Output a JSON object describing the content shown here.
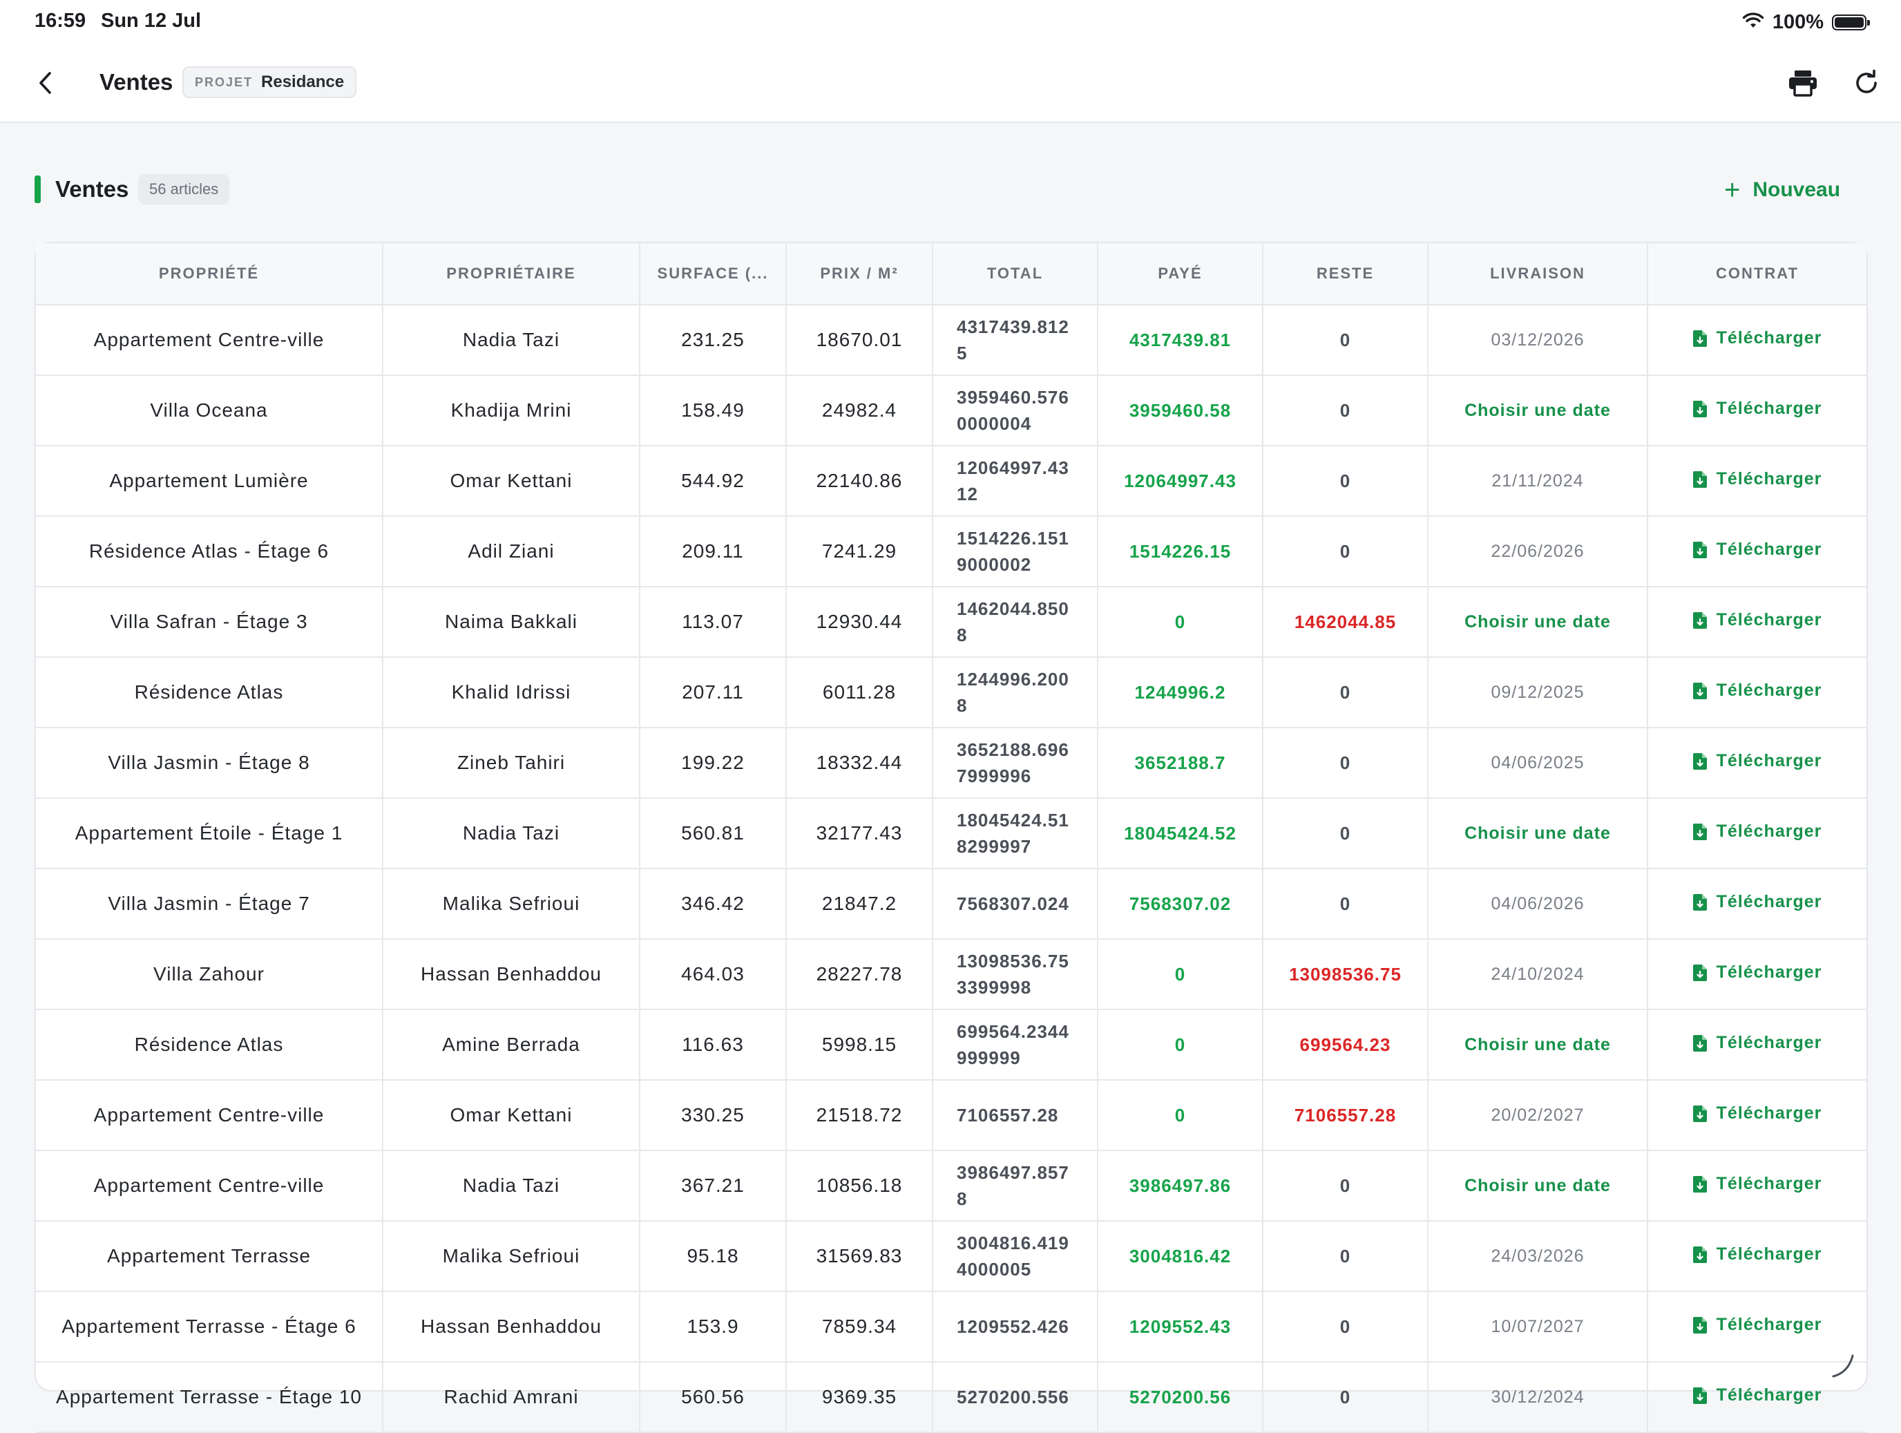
{
  "status_bar": {
    "time": "16:59",
    "date": "Sun 12 Jul",
    "battery": "100%"
  },
  "nav": {
    "title": "Ventes",
    "project_label": "PROJET",
    "project_name": "Residance"
  },
  "section": {
    "title": "Ventes",
    "count": "56 articles",
    "new_button": "Nouveau"
  },
  "table": {
    "columns": [
      "PROPRIÉTÉ",
      "PROPRIÉTAIRE",
      "SURFACE (...",
      "PRIX / M²",
      "TOTAL",
      "PAYÉ",
      "RESTE",
      "LIVRAISON",
      "CONTRAT"
    ],
    "rows": [
      {
        "propriete": "Appartement Centre-ville",
        "proprietaire": "Nadia Tazi",
        "surface": "231.25",
        "prix": "18670.01",
        "total": "4317439.8125",
        "paye": "4317439.81",
        "reste": "0",
        "livraison": "03/12/2026",
        "contrat": "Télécharger"
      },
      {
        "propriete": "Villa Oceana",
        "proprietaire": "Khadija Mrini",
        "surface": "158.49",
        "prix": "24982.4",
        "total": "3959460.5760000004",
        "paye": "3959460.58",
        "reste": "0",
        "livraison": "Choisir une date",
        "contrat": "Télécharger"
      },
      {
        "propriete": "Appartement Lumière",
        "proprietaire": "Omar Kettani",
        "surface": "544.92",
        "prix": "22140.86",
        "total": "12064997.4312",
        "paye": "12064997.43",
        "reste": "0",
        "livraison": "21/11/2024",
        "contrat": "Télécharger"
      },
      {
        "propriete": "Résidence Atlas - Étage 6",
        "proprietaire": "Adil Ziani",
        "surface": "209.11",
        "prix": "7241.29",
        "total": "1514226.1519000002",
        "paye": "1514226.15",
        "reste": "0",
        "livraison": "22/06/2026",
        "contrat": "Télécharger"
      },
      {
        "propriete": "Villa Safran - Étage 3",
        "proprietaire": "Naima Bakkali",
        "surface": "113.07",
        "prix": "12930.44",
        "total": "1462044.8508",
        "paye": "0",
        "reste": "1462044.85",
        "livraison": "Choisir une date",
        "contrat": "Télécharger"
      },
      {
        "propriete": "Résidence Atlas",
        "proprietaire": "Khalid Idrissi",
        "surface": "207.11",
        "prix": "6011.28",
        "total": "1244996.2008",
        "paye": "1244996.2",
        "reste": "0",
        "livraison": "09/12/2025",
        "contrat": "Télécharger"
      },
      {
        "propriete": "Villa Jasmin - Étage 8",
        "proprietaire": "Zineb Tahiri",
        "surface": "199.22",
        "prix": "18332.44",
        "total": "3652188.6967999996",
        "paye": "3652188.7",
        "reste": "0",
        "livraison": "04/06/2025",
        "contrat": "Télécharger"
      },
      {
        "propriete": "Appartement Étoile - Étage 1",
        "proprietaire": "Nadia Tazi",
        "surface": "560.81",
        "prix": "32177.43",
        "total": "18045424.518299997",
        "paye": "18045424.52",
        "reste": "0",
        "livraison": "Choisir une date",
        "contrat": "Télécharger"
      },
      {
        "propriete": "Villa Jasmin - Étage 7",
        "proprietaire": "Malika Sefrioui",
        "surface": "346.42",
        "prix": "21847.2",
        "total": "7568307.024",
        "paye": "7568307.02",
        "reste": "0",
        "livraison": "04/06/2026",
        "contrat": "Télécharger"
      },
      {
        "propriete": "Villa Zahour",
        "proprietaire": "Hassan Benhaddou",
        "surface": "464.03",
        "prix": "28227.78",
        "total": "13098536.753399998",
        "paye": "0",
        "reste": "13098536.75",
        "livraison": "24/10/2024",
        "contrat": "Télécharger"
      },
      {
        "propriete": "Résidence Atlas",
        "proprietaire": "Amine Berrada",
        "surface": "116.63",
        "prix": "5998.15",
        "total": "699564.2344999999",
        "paye": "0",
        "reste": "699564.23",
        "livraison": "Choisir une date",
        "contrat": "Télécharger"
      },
      {
        "propriete": "Appartement Centre-ville",
        "proprietaire": "Omar Kettani",
        "surface": "330.25",
        "prix": "21518.72",
        "total": "7106557.28",
        "paye": "0",
        "reste": "7106557.28",
        "livraison": "20/02/2027",
        "contrat": "Télécharger"
      },
      {
        "propriete": "Appartement Centre-ville",
        "proprietaire": "Nadia Tazi",
        "surface": "367.21",
        "prix": "10856.18",
        "total": "3986497.8578",
        "paye": "3986497.86",
        "reste": "0",
        "livraison": "Choisir une date",
        "contrat": "Télécharger"
      },
      {
        "propriete": "Appartement Terrasse",
        "proprietaire": "Malika Sefrioui",
        "surface": "95.18",
        "prix": "31569.83",
        "total": "3004816.4194000005",
        "paye": "3004816.42",
        "reste": "0",
        "livraison": "24/03/2026",
        "contrat": "Télécharger"
      },
      {
        "propriete": "Appartement Terrasse - Étage 6",
        "proprietaire": "Hassan Benhaddou",
        "surface": "153.9",
        "prix": "7859.34",
        "total": "1209552.426",
        "paye": "1209552.43",
        "reste": "0",
        "livraison": "10/07/2027",
        "contrat": "Télécharger"
      },
      {
        "propriete": "Appartement Terrasse - Étage 10",
        "proprietaire": "Rachid Amrani",
        "surface": "560.56",
        "prix": "9369.35",
        "total": "5270200.556",
        "paye": "5270200.56",
        "reste": "0",
        "livraison": "30/12/2024",
        "contrat": "Télécharger"
      }
    ]
  },
  "colors": {
    "accent_green": "#16a34a",
    "negative_red": "#dc2626"
  },
  "icons": [
    "back-chevron-icon",
    "printer-icon",
    "refresh-icon",
    "plus-icon",
    "file-download-icon",
    "wifi-icon",
    "battery-icon"
  ]
}
